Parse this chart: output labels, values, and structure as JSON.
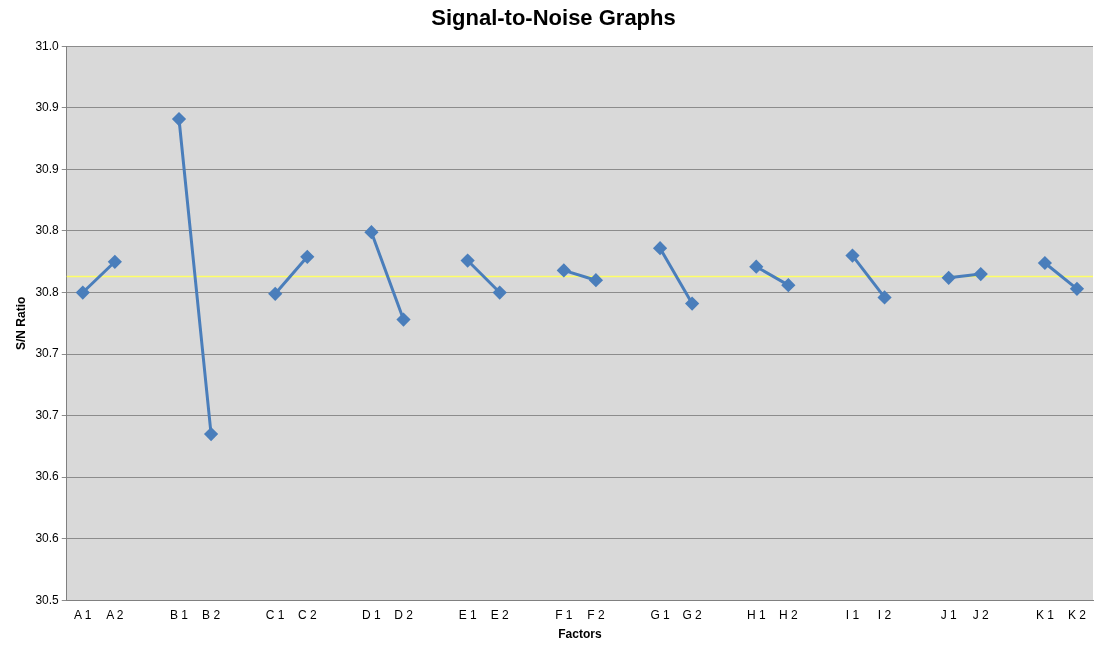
{
  "chart_data": {
    "type": "line",
    "title": "Signal-to-Noise Graphs",
    "xlabel": "Factors",
    "ylabel": "S/N Ratio",
    "categories": [
      "A 1",
      "A 2",
      null,
      "B 1",
      "B 2",
      null,
      "C 1",
      "C 2",
      null,
      "D 1",
      "D 2",
      null,
      "E 1",
      "E 2",
      null,
      "F 1",
      "F 2",
      null,
      "G 1",
      "G 2",
      null,
      "H 1",
      "H 2",
      null,
      "I 1",
      "I 2",
      null,
      "J 1",
      "J 2",
      null,
      "K 1",
      "K 2"
    ],
    "series": [
      {
        "color": "#4a7ebb",
        "values": [
          30.75,
          30.775,
          null,
          30.891,
          30.635,
          null,
          30.749,
          30.779,
          null,
          30.799,
          30.728,
          null,
          30.776,
          30.75,
          null,
          30.768,
          30.76,
          null,
          30.786,
          30.741,
          null,
          30.771,
          30.756,
          null,
          30.78,
          30.746,
          null,
          30.762,
          30.765,
          null,
          30.774,
          30.753
        ]
      }
    ],
    "ylim": [
      30.5,
      30.95
    ],
    "yticks": [
      {
        "value": 30.5,
        "label": "30.5"
      },
      {
        "value": 30.55,
        "label": "30.6"
      },
      {
        "value": 30.6,
        "label": "30.6"
      },
      {
        "value": 30.65,
        "label": "30.7"
      },
      {
        "value": 30.7,
        "label": "30.7"
      },
      {
        "value": 30.75,
        "label": "30.8"
      },
      {
        "value": 30.8,
        "label": "30.8"
      },
      {
        "value": 30.85,
        "label": "30.9"
      },
      {
        "value": 30.9,
        "label": "30.9"
      },
      {
        "value": 30.95,
        "label": "31.0"
      }
    ],
    "ref_lines": [
      {
        "axis": "y",
        "value": 30.763,
        "color": "#ffff66"
      }
    ],
    "grid": "y",
    "legend": false,
    "marker": "diamond",
    "line_style": "solid"
  }
}
